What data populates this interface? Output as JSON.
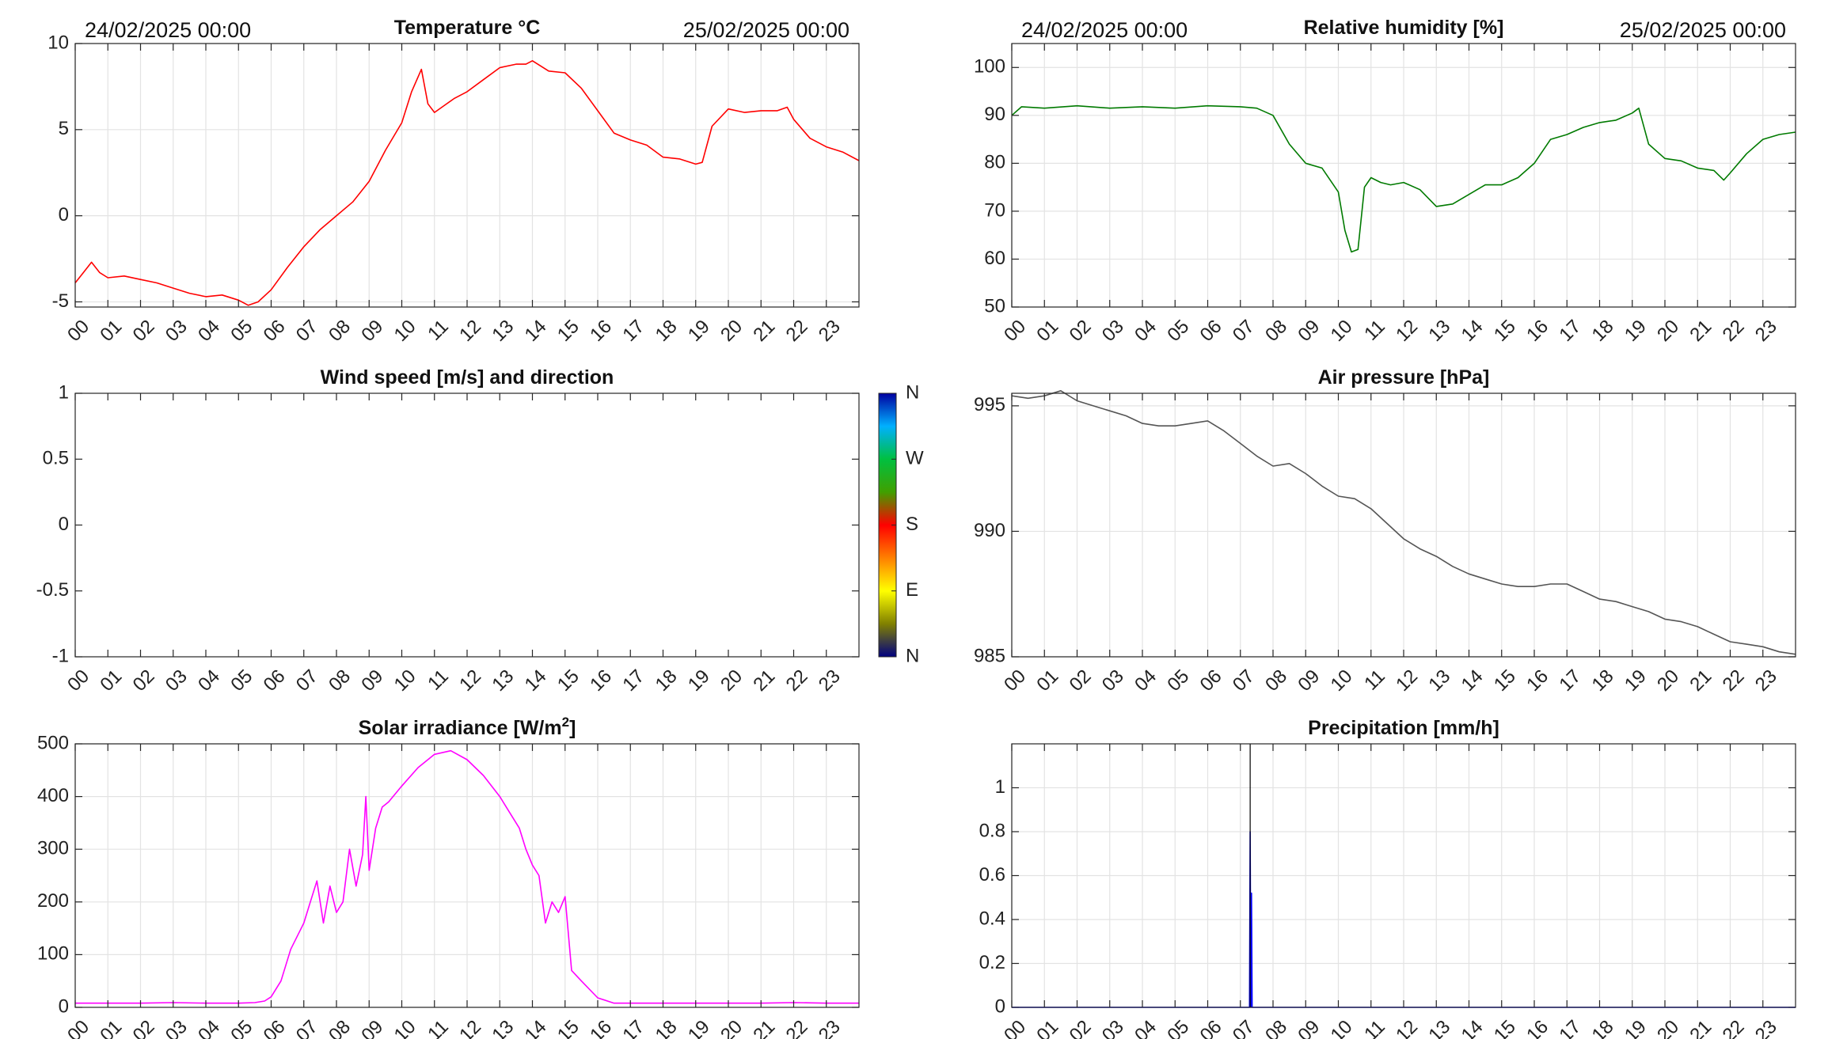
{
  "hours": [
    "00",
    "01",
    "02",
    "03",
    "04",
    "05",
    "06",
    "07",
    "08",
    "09",
    "10",
    "11",
    "12",
    "13",
    "14",
    "15",
    "16",
    "17",
    "18",
    "19",
    "20",
    "21",
    "22",
    "23"
  ],
  "colors": {
    "temperature": "#ff0000",
    "humidity": "#007a00",
    "pressure": "#555555",
    "solar": "#ff00ff",
    "precipitation": "#0000ff",
    "grid": "#e3e3e3",
    "axis": "#262626"
  },
  "chart_data": [
    {
      "id": "temperature",
      "type": "line",
      "title": "Temperature °C",
      "date_start": "24/02/2025 00:00",
      "date_end": "25/02/2025 00:00",
      "xlim": [
        0,
        24
      ],
      "ylim": [
        -5.3,
        10
      ],
      "yticks": [
        -5,
        0,
        5,
        10
      ],
      "grid": true,
      "series": [
        {
          "color": "#ff0000",
          "x": [
            0,
            0.25,
            0.5,
            0.75,
            1,
            1.5,
            2,
            2.5,
            3,
            3.5,
            4,
            4.5,
            5,
            5.3,
            5.6,
            6,
            6.5,
            7,
            7.5,
            8,
            8.5,
            9,
            9.5,
            10,
            10.3,
            10.6,
            10.8,
            11,
            11.3,
            11.6,
            12,
            12.5,
            13,
            13.5,
            13.8,
            14,
            14.5,
            15,
            15.5,
            16,
            16.5,
            17,
            17.5,
            18,
            18.5,
            19,
            19.2,
            19.5,
            20,
            20.5,
            21,
            21.5,
            21.8,
            22,
            22.5,
            23,
            23.5,
            24
          ],
          "y": [
            -3.9,
            -3.3,
            -2.7,
            -3.3,
            -3.6,
            -3.5,
            -3.7,
            -3.9,
            -4.2,
            -4.5,
            -4.7,
            -4.6,
            -4.9,
            -5.2,
            -5.0,
            -4.3,
            -3.0,
            -1.8,
            -0.8,
            0.0,
            0.8,
            2.0,
            3.8,
            5.4,
            7.2,
            8.5,
            6.5,
            6.0,
            6.4,
            6.8,
            7.2,
            7.9,
            8.6,
            8.8,
            8.8,
            9.0,
            8.4,
            8.3,
            7.4,
            6.1,
            4.8,
            4.4,
            4.1,
            3.4,
            3.3,
            3.0,
            3.1,
            5.2,
            6.2,
            6.0,
            6.1,
            6.1,
            6.3,
            5.6,
            4.5,
            4.0,
            3.7,
            3.2
          ]
        }
      ]
    },
    {
      "id": "humidity",
      "type": "line",
      "title": "Relative humidity [%]",
      "date_start": "24/02/2025 00:00",
      "date_end": "25/02/2025 00:00",
      "xlim": [
        0,
        24
      ],
      "ylim": [
        50,
        105
      ],
      "yticks": [
        50,
        60,
        70,
        80,
        90,
        100
      ],
      "grid": true,
      "series": [
        {
          "color": "#007a00",
          "x": [
            0,
            0.3,
            1,
            2,
            3,
            4,
            5,
            6,
            7,
            7.5,
            8,
            8.5,
            9,
            9.5,
            10,
            10.2,
            10.4,
            10.6,
            10.8,
            11,
            11.3,
            11.6,
            12,
            12.5,
            13,
            13.5,
            14,
            14.5,
            15,
            15.5,
            16,
            16.5,
            17,
            17.5,
            18,
            18.5,
            19,
            19.2,
            19.5,
            20,
            20.5,
            21,
            21.5,
            21.8,
            22,
            22.5,
            23,
            23.5,
            24
          ],
          "y": [
            90,
            91.8,
            91.5,
            92,
            91.5,
            91.8,
            91.5,
            92,
            91.8,
            91.5,
            90,
            84,
            80,
            79,
            74,
            66,
            61.5,
            62,
            75,
            77,
            76,
            75.5,
            76,
            74.5,
            71,
            71.5,
            73.5,
            75.5,
            75.5,
            77,
            80,
            85,
            86,
            87.5,
            88.5,
            89,
            90.5,
            91.5,
            84,
            81,
            80.5,
            79,
            78.5,
            76.5,
            78,
            82,
            85,
            86,
            86.5
          ]
        }
      ]
    },
    {
      "id": "wind",
      "type": "line",
      "title": "Wind speed [m/s] and direction",
      "xlim": [
        0,
        24
      ],
      "ylim": [
        -1,
        1
      ],
      "yticks": [
        -1,
        -0.5,
        0,
        0.5,
        1
      ],
      "ytick_labels": [
        "-1",
        "-0.5",
        "0",
        "0.5",
        "1"
      ],
      "grid": false,
      "series": [],
      "colorbar": {
        "labels": [
          "N",
          "W",
          "S",
          "E",
          "N"
        ],
        "colors": [
          "#0000a0",
          "#00b0ff",
          "#00c040",
          "#40a000",
          "#ff0000",
          "#ff8000",
          "#ffff00",
          "#808000",
          "#000080"
        ]
      }
    },
    {
      "id": "pressure",
      "type": "line",
      "title": "Air pressure [hPa]",
      "xlim": [
        0,
        24
      ],
      "ylim": [
        985,
        995.5
      ],
      "yticks": [
        985,
        990,
        995
      ],
      "grid": true,
      "series": [
        {
          "color": "#555555",
          "x": [
            0,
            0.5,
            1,
            1.5,
            2,
            2.5,
            3,
            3.5,
            4,
            4.5,
            5,
            5.5,
            6,
            6.5,
            7,
            7.5,
            8,
            8.5,
            9,
            9.5,
            10,
            10.5,
            11,
            11.5,
            12,
            12.5,
            13,
            13.5,
            14,
            14.5,
            15,
            15.5,
            16,
            16.5,
            17,
            17.5,
            18,
            18.5,
            19,
            19.5,
            20,
            20.5,
            21,
            21.5,
            22,
            22.5,
            23,
            23.5,
            24
          ],
          "y": [
            995.4,
            995.3,
            995.4,
            995.6,
            995.2,
            995.0,
            994.8,
            994.6,
            994.3,
            994.2,
            994.2,
            994.3,
            994.4,
            994.0,
            993.5,
            993.0,
            992.6,
            992.7,
            992.3,
            991.8,
            991.4,
            991.3,
            990.9,
            990.3,
            989.7,
            989.3,
            989.0,
            988.6,
            988.3,
            988.1,
            987.9,
            987.8,
            987.8,
            987.9,
            987.9,
            987.6,
            987.3,
            987.2,
            987.0,
            986.8,
            986.5,
            986.4,
            986.2,
            985.9,
            985.6,
            985.5,
            985.4,
            985.2,
            985.1
          ]
        }
      ]
    },
    {
      "id": "solar",
      "type": "line",
      "title": "Solar irradiance [W/m",
      "title_sup": "2",
      "title_end": "]",
      "xlim": [
        0,
        24
      ],
      "ylim": [
        0,
        500
      ],
      "yticks": [
        0,
        100,
        200,
        300,
        400,
        500
      ],
      "grid": true,
      "series": [
        {
          "color": "#ff00ff",
          "x": [
            0,
            1,
            2,
            3,
            4,
            5,
            5.5,
            5.8,
            6,
            6.3,
            6.6,
            7,
            7.2,
            7.4,
            7.6,
            7.8,
            8,
            8.2,
            8.4,
            8.6,
            8.8,
            8.9,
            9,
            9.2,
            9.4,
            9.6,
            10,
            10.5,
            11,
            11.5,
            12,
            12.5,
            13,
            13.3,
            13.6,
            13.8,
            14,
            14.2,
            14.4,
            14.6,
            14.8,
            15,
            15.2,
            15.5,
            16,
            16.5,
            17,
            18,
            19,
            20,
            21,
            22,
            23,
            24
          ],
          "y": [
            8,
            8,
            8,
            9,
            8,
            8,
            9,
            12,
            20,
            50,
            110,
            160,
            200,
            240,
            160,
            230,
            180,
            200,
            300,
            230,
            290,
            400,
            260,
            340,
            380,
            390,
            420,
            455,
            480,
            487,
            470,
            440,
            400,
            370,
            340,
            300,
            270,
            250,
            160,
            200,
            180,
            210,
            70,
            50,
            18,
            8,
            8,
            8,
            8,
            8,
            8,
            9,
            8,
            8
          ]
        }
      ]
    },
    {
      "id": "precipitation",
      "type": "line",
      "title": "Precipitation [mm/h]",
      "xlim": [
        0,
        24
      ],
      "ylim": [
        0,
        1.2
      ],
      "yticks": [
        0,
        0.2,
        0.4,
        0.6,
        0.8,
        1
      ],
      "ytick_labels": [
        "0",
        "0.2",
        "0.4",
        "0.6",
        "0.8",
        "1"
      ],
      "grid": true,
      "series": [
        {
          "color": "#0000ff",
          "x": [
            0,
            7.28,
            7.3,
            7.32,
            7.34,
            7.36,
            24
          ],
          "y": [
            0,
            0,
            0.8,
            0,
            0.52,
            0,
            0
          ]
        }
      ],
      "vline": {
        "x": 7.3,
        "color": "#000000"
      }
    }
  ]
}
